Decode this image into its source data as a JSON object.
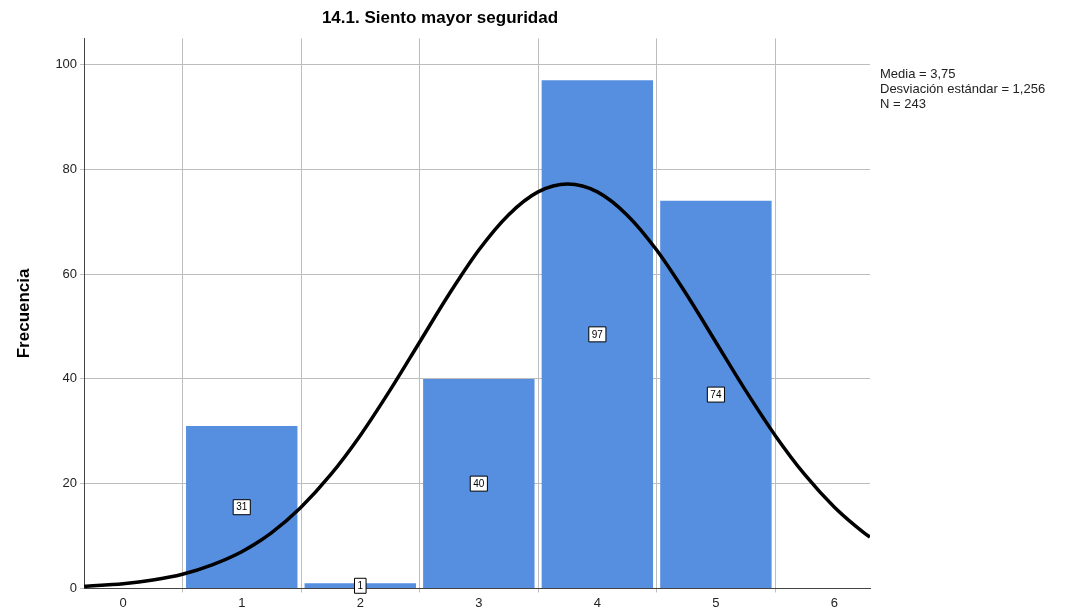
{
  "chart_data": {
    "type": "histogram",
    "title": "14.1. Siento mayor seguridad",
    "ylabel": "Frecuencia",
    "bins": [
      0.5,
      1.5,
      2.5,
      3.5,
      4.5,
      5.5
    ],
    "values": [
      31,
      1,
      40,
      97,
      74
    ],
    "color": "#568fe0",
    "value_labels": [
      "31",
      "1",
      "40",
      "97",
      "74"
    ],
    "xlim": [
      -0.33,
      6.3
    ],
    "xticks": [
      0,
      1,
      2,
      3,
      4,
      5,
      6
    ],
    "ylim": [
      0,
      105
    ],
    "yticks": [
      0,
      20,
      40,
      60,
      80,
      100
    ],
    "grid": true,
    "legend": false,
    "marker": "none",
    "line_style": "solid",
    "annotations": [
      "Media = 3,75",
      "Desviación estándar = 1,256",
      "N = 243"
    ],
    "series": [
      {
        "type": "line",
        "color": "#000000",
        "x": [
          -0.33,
          0,
          0.25,
          0.5,
          0.75,
          1,
          1.25,
          1.5,
          1.75,
          2,
          2.25,
          2.5,
          2.75,
          3,
          3.25,
          3.5,
          3.75,
          4,
          4.25,
          4.5,
          4.75,
          5,
          5.25,
          5.5,
          5.75,
          6,
          6.25,
          6.3
        ],
        "values": [
          0.4,
          0.9,
          1.6,
          2.7,
          4.5,
          7,
          10.6,
          15.5,
          21.7,
          29.2,
          37.8,
          47,
          56.2,
          64.6,
          71.3,
          75.7,
          77.2,
          75.7,
          71.3,
          64.6,
          56.2,
          47,
          37.8,
          29.2,
          21.7,
          15.5,
          10.6,
          9.8
        ]
      }
    ]
  }
}
